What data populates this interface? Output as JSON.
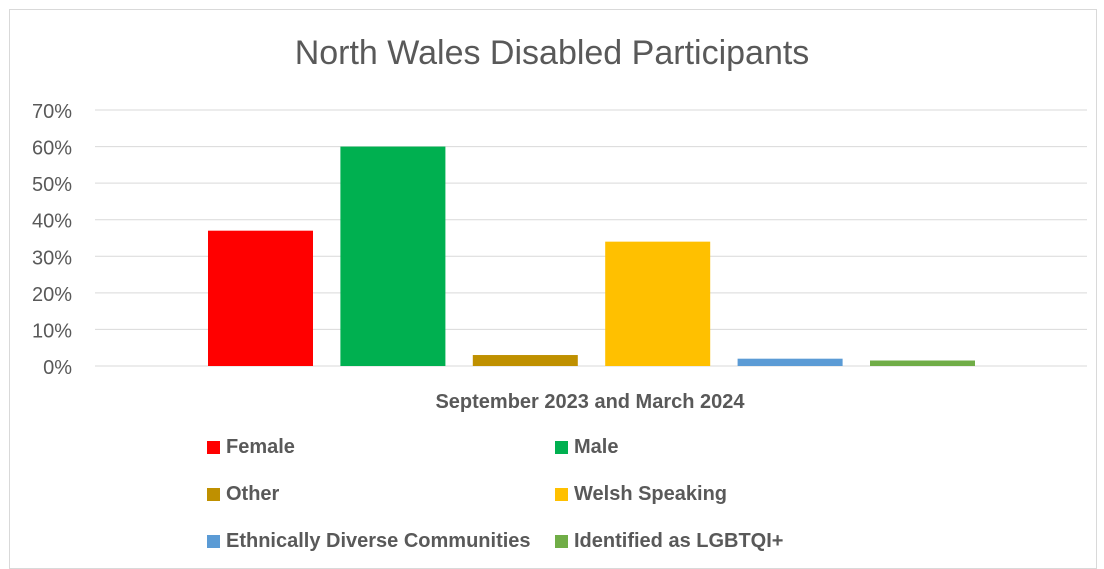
{
  "chart_data": {
    "type": "bar",
    "title": "North Wales Disabled Participants",
    "xlabel": "September 2023 and March 2024",
    "ylabel": "",
    "ylim": [
      0,
      0.7
    ],
    "yticks": [
      "0%",
      "10%",
      "20%",
      "30%",
      "40%",
      "50%",
      "60%",
      "70%"
    ],
    "grid": true,
    "legend_position": "bottom",
    "categories": [
      "September 2023 and March 2024"
    ],
    "series": [
      {
        "name": "Female",
        "values": [
          0.37
        ],
        "color": "#ff0000"
      },
      {
        "name": "Male",
        "values": [
          0.6
        ],
        "color": "#00b050"
      },
      {
        "name": "Other",
        "values": [
          0.03
        ],
        "color": "#bf9000"
      },
      {
        "name": "Welsh Speaking",
        "values": [
          0.34
        ],
        "color": "#ffc000"
      },
      {
        "name": "Ethnically Diverse Communities",
        "values": [
          0.02
        ],
        "color": "#5b9bd5"
      },
      {
        "name": "Identified as LGBTQI+",
        "values": [
          0.015
        ],
        "color": "#70ad47"
      }
    ]
  }
}
